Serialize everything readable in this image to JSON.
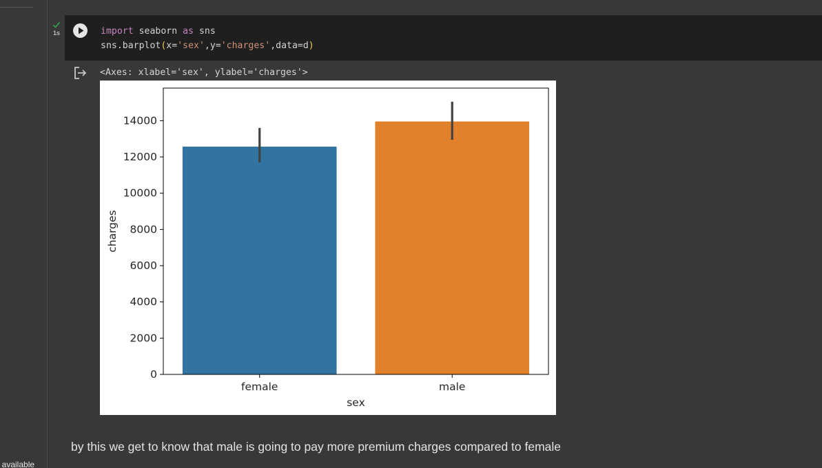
{
  "sidebar": {
    "bottom_text": "t available"
  },
  "cell": {
    "run_time": "1s",
    "code_line1": {
      "kw1": "import",
      "mod": " seaborn ",
      "kw2": "as",
      "alias": " sns"
    },
    "code_line2": {
      "prefix": "sns.barplot",
      "open": "(",
      "arg1": "x=",
      "val1": "'sex'",
      "arg2": ",y=",
      "val2": "'charges'",
      "arg3": ",data=d",
      "close": ")"
    },
    "output_text": "<Axes: xlabel='sex', ylabel='charges'>"
  },
  "chart_data": {
    "type": "bar",
    "categories": [
      "female",
      "male"
    ],
    "values": [
      12570,
      13957
    ],
    "error_low": [
      11700,
      12950
    ],
    "error_high": [
      13600,
      15050
    ],
    "colors": [
      "#3274a1",
      "#e1812c"
    ],
    "xlabel": "sex",
    "ylabel": "charges",
    "ylim": [
      0,
      15800
    ],
    "yticks": [
      0,
      2000,
      4000,
      6000,
      8000,
      10000,
      12000,
      14000
    ],
    "grid": false
  },
  "markdown": {
    "text": "by this we get to know that male is going to pay more premium charges compared to female"
  }
}
